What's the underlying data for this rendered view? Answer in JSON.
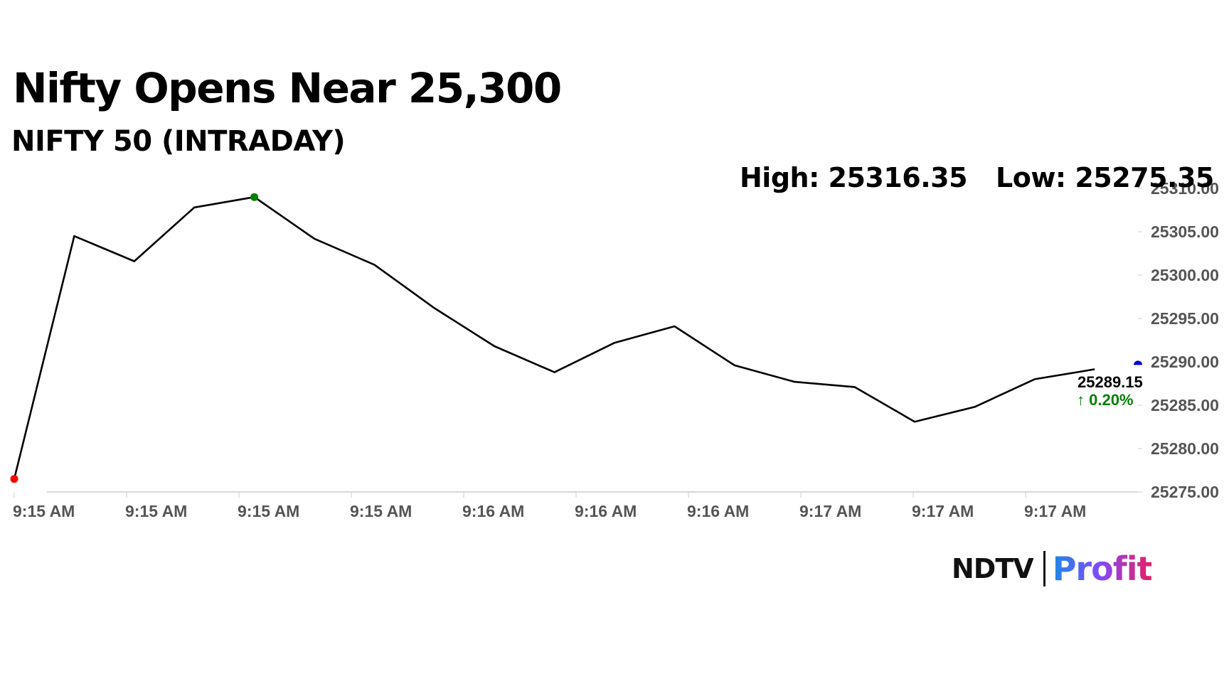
{
  "header": {
    "title": "Nifty Opens Near 25,300",
    "subtitle": "NIFTY 50 (INTRADAY)",
    "high_label": "High: 25316.35",
    "low_label": "Low: 25275.35"
  },
  "last": {
    "value": "25289.15",
    "change": "0.20%",
    "arrow": "↑"
  },
  "logo": {
    "brand": "NDTV",
    "product": "Profit"
  },
  "colors": {
    "line": "#000000",
    "start_marker": "#ff0000",
    "high_marker": "#008000",
    "last_marker": "#0000cc",
    "change": "#008000",
    "axis": "#cccccc"
  },
  "chart_data": {
    "type": "line",
    "y_ticks": [
      "25310.00",
      "25305.00",
      "25300.00",
      "25295.00",
      "25290.00",
      "25285.00",
      "25280.00",
      "25275.00"
    ],
    "ylim": [
      25275,
      25310
    ],
    "x_ticks": [
      "9:15 AM",
      "9:15 AM",
      "9:15 AM",
      "9:15 AM",
      "9:16 AM",
      "9:16 AM",
      "9:16 AM",
      "9:17 AM",
      "9:17 AM",
      "9:17 AM"
    ],
    "series": [
      {
        "values": [
          25276.5,
          25304.5,
          25301.6,
          25307.8,
          25309.0,
          25304.2,
          25301.2,
          25296.2,
          25291.8,
          25288.8,
          25292.2,
          25294.1,
          25289.6,
          25287.7,
          25287.1,
          25283.1,
          25284.8,
          25288.0,
          25289.15
        ]
      }
    ],
    "markers": {
      "start_index": 0,
      "high_index": 4
    },
    "grid": false
  }
}
